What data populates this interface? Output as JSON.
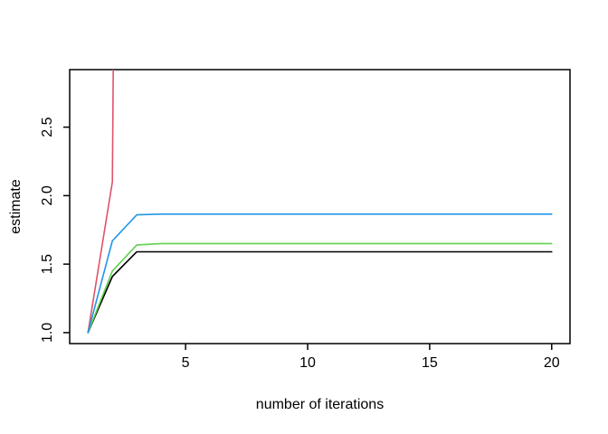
{
  "chart_data": {
    "type": "line",
    "title": "",
    "xlabel": "number of iterations",
    "ylabel": "estimate",
    "x_ticks": [
      5,
      10,
      15,
      20
    ],
    "x_tick_labels": [
      "5",
      "10",
      "15",
      "20"
    ],
    "y_ticks": [
      1.0,
      1.5,
      2.0,
      2.5
    ],
    "y_tick_labels": [
      "1.0",
      "1.5",
      "2.0",
      "2.5"
    ],
    "x_range": [
      0.25,
      20.75
    ],
    "y_range": [
      0.92,
      2.92
    ],
    "grid": false,
    "legend": "none",
    "box": true,
    "series": [
      {
        "name": "black",
        "color": "#000000",
        "x": [
          1,
          2,
          3,
          4,
          5,
          6,
          7,
          8,
          9,
          10,
          11,
          12,
          13,
          14,
          15,
          16,
          17,
          18,
          19,
          20
        ],
        "values": [
          1.0,
          1.41,
          1.59,
          1.59,
          1.59,
          1.59,
          1.59,
          1.59,
          1.59,
          1.59,
          1.59,
          1.59,
          1.59,
          1.59,
          1.59,
          1.59,
          1.59,
          1.59,
          1.59,
          1.59
        ]
      },
      {
        "name": "red",
        "color": "#DF536B",
        "note": "diverges: exits top of plot between iteration 2 and 3, clipped",
        "x": [
          1,
          2,
          3
        ],
        "values": [
          1.0,
          2.1,
          25.0
        ]
      },
      {
        "name": "green",
        "color": "#61D04F",
        "x": [
          1,
          2,
          3,
          4,
          5,
          6,
          7,
          8,
          9,
          10,
          11,
          12,
          13,
          14,
          15,
          16,
          17,
          18,
          19,
          20
        ],
        "values": [
          1.0,
          1.45,
          1.64,
          1.65,
          1.65,
          1.65,
          1.65,
          1.65,
          1.65,
          1.65,
          1.65,
          1.65,
          1.65,
          1.65,
          1.65,
          1.65,
          1.65,
          1.65,
          1.65,
          1.65
        ]
      },
      {
        "name": "blue",
        "color": "#2297E6",
        "x": [
          1,
          2,
          3,
          4,
          5,
          6,
          7,
          8,
          9,
          10,
          11,
          12,
          13,
          14,
          15,
          16,
          17,
          18,
          19,
          20
        ],
        "values": [
          1.0,
          1.67,
          1.86,
          1.865,
          1.865,
          1.865,
          1.865,
          1.865,
          1.865,
          1.865,
          1.865,
          1.865,
          1.865,
          1.865,
          1.865,
          1.865,
          1.865,
          1.865,
          1.865,
          1.865
        ]
      }
    ],
    "colors": {
      "axis": "#000000",
      "background": "#ffffff"
    }
  }
}
